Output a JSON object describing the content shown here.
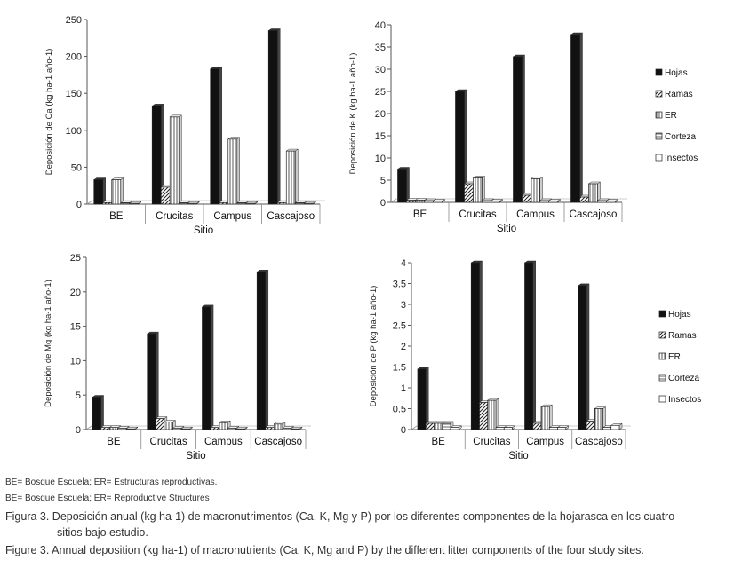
{
  "series_names": [
    "Hojas",
    "Ramas",
    "ER",
    "Corteza",
    "Insectos"
  ],
  "chart_data": [
    {
      "type": "bar",
      "title": "",
      "xlabel": "Sitio",
      "ylabel": "Deposición de Ca (kg ha-1 año-1)",
      "ylim": [
        0,
        250
      ],
      "yticks": [
        "0",
        "50",
        "100",
        "150",
        "200",
        "250"
      ],
      "categories": [
        "BE",
        "Crucitas",
        "Campus",
        "Cascajoso"
      ],
      "legend": [],
      "series": [
        {
          "name": "Hojas",
          "values": [
            33,
            133,
            183,
            235
          ]
        },
        {
          "name": "Ramas",
          "values": [
            2,
            23,
            2,
            2
          ]
        },
        {
          "name": "ER",
          "values": [
            33,
            118,
            88,
            72
          ]
        },
        {
          "name": "Corteza",
          "values": [
            2,
            2,
            2,
            2
          ]
        },
        {
          "name": "Insectos",
          "values": [
            1,
            1,
            1,
            1
          ]
        }
      ]
    },
    {
      "type": "bar",
      "title": "",
      "xlabel": "Sitio",
      "ylabel": "Deposición de K (kg ha-1 año-1)",
      "ylim": [
        0,
        40
      ],
      "yticks": [
        "0",
        "5",
        "10",
        "15",
        "20",
        "25",
        "30",
        "35",
        "40"
      ],
      "categories": [
        "BE",
        "Crucitas",
        "Campus",
        "Cascajoso"
      ],
      "legend": [
        "Hojas",
        "Ramas",
        "ER",
        "Corteza",
        "Insectos"
      ],
      "series": [
        {
          "name": "Hojas",
          "values": [
            7.5,
            25,
            32.8,
            37.8
          ]
        },
        {
          "name": "Ramas",
          "values": [
            0.5,
            4.2,
            1.6,
            1.2
          ]
        },
        {
          "name": "ER",
          "values": [
            0.5,
            5.5,
            5.3,
            4.2
          ]
        },
        {
          "name": "Corteza",
          "values": [
            0.4,
            0.4,
            0.4,
            0.4
          ]
        },
        {
          "name": "Insectos",
          "values": [
            0.3,
            0.3,
            0.3,
            0.3
          ]
        }
      ]
    },
    {
      "type": "bar",
      "title": "",
      "xlabel": "Sitio",
      "ylabel": "Deposición de Mg (kg ha-1 año-1)",
      "ylim": [
        0,
        25
      ],
      "yticks": [
        "0",
        "5",
        "10",
        "15",
        "20",
        "25"
      ],
      "categories": [
        "BE",
        "Crucitas",
        "Campus",
        "Cascajoso"
      ],
      "legend": [],
      "series": [
        {
          "name": "Hojas",
          "values": [
            4.7,
            13.9,
            17.8,
            22.9
          ]
        },
        {
          "name": "Ramas",
          "values": [
            0.3,
            1.6,
            0.3,
            0.3
          ]
        },
        {
          "name": "ER",
          "values": [
            0.3,
            1.1,
            1.0,
            0.8
          ]
        },
        {
          "name": "Corteza",
          "values": [
            0.2,
            0.2,
            0.2,
            0.2
          ]
        },
        {
          "name": "Insectos",
          "values": [
            0.1,
            0.1,
            0.1,
            0.1
          ]
        }
      ]
    },
    {
      "type": "bar",
      "title": "",
      "xlabel": "Sitio",
      "ylabel": "Deposición de P (kg ha-1 año-1)",
      "ylim": [
        0,
        4
      ],
      "yticks": [
        "0",
        "0.5",
        "1",
        "1.5",
        "2",
        "2.5",
        "3",
        "3.5",
        "4"
      ],
      "categories": [
        "BE",
        "Crucitas",
        "Campus",
        "Cascajoso"
      ],
      "legend": [
        "Hojas",
        "Ramas",
        "ER",
        "Corteza",
        "Insectos"
      ],
      "series": [
        {
          "name": "Hojas",
          "values": [
            1.45,
            4.05,
            4.05,
            3.45
          ]
        },
        {
          "name": "Ramas",
          "values": [
            0.15,
            0.65,
            0.15,
            0.2
          ]
        },
        {
          "name": "ER",
          "values": [
            0.15,
            0.7,
            0.55,
            0.5
          ]
        },
        {
          "name": "Corteza",
          "values": [
            0.15,
            0.05,
            0.05,
            0.05
          ]
        },
        {
          "name": "Insectos",
          "values": [
            0.05,
            0.05,
            0.05,
            0.1
          ]
        }
      ]
    }
  ],
  "notes": {
    "line1": "BE= Bosque Escuela; ER= Estructuras reproductivas.",
    "line2": "BE= Bosque Escuela; ER= Reproductive Structures"
  },
  "caption": {
    "es_line1": "Figura 3. Deposición anual (kg ha-1) de macronutrimentos (Ca, K, Mg y P) por los diferentes componentes de la hojarasca en los cuatro",
    "es_line2": "sitios bajo estudio.",
    "en_line1": "Figure 3. Annual deposition (kg ha-1) of macronutrients (Ca, K, Mg and P) by the different litter components of the four study sites."
  }
}
